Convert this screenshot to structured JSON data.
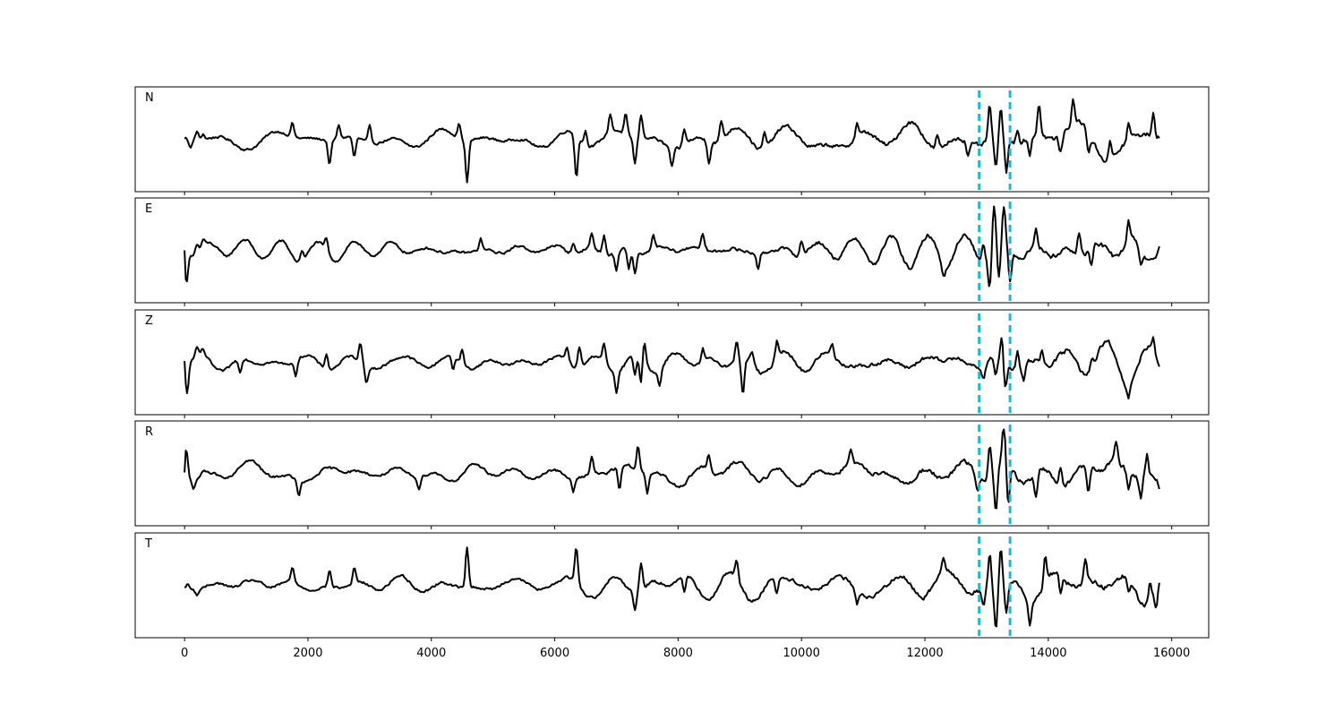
{
  "chart_data": {
    "type": "line",
    "xlim": [
      -800,
      16600
    ],
    "x_ticks": [
      0,
      2000,
      4000,
      6000,
      8000,
      10000,
      12000,
      14000,
      16000
    ],
    "x_tick_labels": [
      "0",
      "2000",
      "4000",
      "6000",
      "8000",
      "10000",
      "12000",
      "14000",
      "16000"
    ],
    "grid": false,
    "vertical_markers": [
      {
        "x": 12880,
        "color": "#17becf",
        "style": "dashed"
      },
      {
        "x": 13380,
        "color": "#17becf",
        "style": "dashed"
      }
    ],
    "x_end": 15800,
    "series": [
      {
        "name": "N",
        "ylim": [
          -1,
          1
        ],
        "events": [
          [
            0,
            0.02
          ],
          [
            100,
            -0.18
          ],
          [
            200,
            0.18
          ],
          [
            300,
            0.12
          ],
          [
            1750,
            0.3
          ],
          [
            2350,
            -0.55
          ],
          [
            2500,
            0.3
          ],
          [
            2750,
            -0.45
          ],
          [
            3000,
            0.35
          ],
          [
            4450,
            0.32
          ],
          [
            4580,
            -0.92
          ],
          [
            6350,
            -0.9
          ],
          [
            6500,
            0.3
          ],
          [
            6900,
            0.4
          ],
          [
            7150,
            0.45
          ],
          [
            7300,
            -0.55
          ],
          [
            7400,
            0.52
          ],
          [
            7900,
            -0.4
          ],
          [
            8100,
            0.35
          ],
          [
            8500,
            -0.45
          ],
          [
            8700,
            0.4
          ],
          [
            9400,
            0.35
          ],
          [
            10900,
            0.3
          ],
          [
            12200,
            0.3
          ],
          [
            12700,
            -0.3
          ],
          [
            13050,
            0.8
          ],
          [
            13150,
            -0.68
          ],
          [
            13230,
            0.7
          ],
          [
            13320,
            -0.7
          ],
          [
            13500,
            0.3
          ],
          [
            13700,
            -0.38
          ],
          [
            13850,
            0.7
          ],
          [
            14200,
            -0.38
          ],
          [
            14400,
            0.5
          ],
          [
            14650,
            -0.4
          ],
          [
            15000,
            0.4
          ],
          [
            15300,
            0.35
          ],
          [
            15700,
            0.5
          ],
          [
            15800,
            0.02
          ]
        ]
      },
      {
        "name": "E",
        "ylim": [
          -1,
          1
        ],
        "events": [
          [
            0,
            0.0
          ],
          [
            30,
            -0.65
          ],
          [
            200,
            0.18
          ],
          [
            300,
            0.15
          ],
          [
            1900,
            0.25
          ],
          [
            2300,
            0.3
          ],
          [
            4800,
            0.25
          ],
          [
            6300,
            0.25
          ],
          [
            6600,
            0.32
          ],
          [
            6800,
            0.4
          ],
          [
            7000,
            -0.4
          ],
          [
            7200,
            -0.45
          ],
          [
            7300,
            -0.5
          ],
          [
            7600,
            0.3
          ],
          [
            8400,
            0.3
          ],
          [
            9300,
            -0.35
          ],
          [
            10000,
            0.3
          ],
          [
            12300,
            -0.3
          ],
          [
            12950,
            0.4
          ],
          [
            13050,
            -0.75
          ],
          [
            13120,
            0.92
          ],
          [
            13200,
            -0.85
          ],
          [
            13280,
            0.8
          ],
          [
            13380,
            -0.7
          ],
          [
            13800,
            0.42
          ],
          [
            14500,
            0.45
          ],
          [
            14700,
            -0.4
          ],
          [
            15300,
            0.4
          ],
          [
            15500,
            -0.38
          ],
          [
            15800,
            0.08
          ]
        ]
      },
      {
        "name": "Z",
        "ylim": [
          -1,
          1
        ],
        "events": [
          [
            0,
            0.03
          ],
          [
            40,
            -0.65
          ],
          [
            200,
            0.15
          ],
          [
            300,
            0.12
          ],
          [
            900,
            -0.3
          ],
          [
            1800,
            -0.35
          ],
          [
            2300,
            0.35
          ],
          [
            2850,
            0.4
          ],
          [
            2950,
            -0.35
          ],
          [
            4350,
            -0.3
          ],
          [
            4500,
            0.3
          ],
          [
            6200,
            0.3
          ],
          [
            6400,
            0.45
          ],
          [
            6800,
            0.38
          ],
          [
            7000,
            -0.45
          ],
          [
            7300,
            -0.5
          ],
          [
            7400,
            -0.6
          ],
          [
            7450,
            0.5
          ],
          [
            7700,
            -0.38
          ],
          [
            8400,
            0.3
          ],
          [
            8950,
            0.45
          ],
          [
            9050,
            -0.8
          ],
          [
            9200,
            0.28
          ],
          [
            9600,
            0.35
          ],
          [
            10500,
            0.28
          ],
          [
            12950,
            -0.3
          ],
          [
            13150,
            -0.4
          ],
          [
            13250,
            0.55
          ],
          [
            13300,
            -0.6
          ],
          [
            13500,
            0.4
          ],
          [
            13600,
            -0.3
          ],
          [
            13900,
            0.3
          ],
          [
            14700,
            0.3
          ],
          [
            15300,
            -0.25
          ],
          [
            15700,
            0.3
          ],
          [
            15800,
            -0.12
          ]
        ]
      },
      {
        "name": "R",
        "ylim": [
          -1,
          1
        ],
        "events": [
          [
            0,
            0.02
          ],
          [
            30,
            0.6
          ],
          [
            150,
            -0.18
          ],
          [
            300,
            0.1
          ],
          [
            1850,
            -0.35
          ],
          [
            3800,
            -0.25
          ],
          [
            6300,
            -0.3
          ],
          [
            6600,
            0.4
          ],
          [
            7050,
            -0.5
          ],
          [
            7350,
            0.55
          ],
          [
            7500,
            -0.45
          ],
          [
            8500,
            0.35
          ],
          [
            10800,
            0.3
          ],
          [
            12850,
            -0.3
          ],
          [
            13050,
            0.7
          ],
          [
            13150,
            -0.95
          ],
          [
            13280,
            0.8
          ],
          [
            13350,
            -0.9
          ],
          [
            13800,
            -0.55
          ],
          [
            14200,
            0.45
          ],
          [
            14650,
            -0.5
          ],
          [
            15100,
            0.45
          ],
          [
            15300,
            -0.4
          ],
          [
            15500,
            -0.45
          ],
          [
            15600,
            0.45
          ],
          [
            15800,
            -0.12
          ]
        ]
      },
      {
        "name": "T",
        "ylim": [
          -1,
          1
        ],
        "events": [
          [
            0,
            -0.05
          ],
          [
            50,
            0.1
          ],
          [
            200,
            -0.1
          ],
          [
            1750,
            0.3
          ],
          [
            2350,
            0.35
          ],
          [
            2750,
            0.35
          ],
          [
            4580,
            0.9
          ],
          [
            6350,
            0.8
          ],
          [
            7300,
            -0.4
          ],
          [
            7400,
            0.6
          ],
          [
            8100,
            -0.35
          ],
          [
            8950,
            0.45
          ],
          [
            9600,
            -0.35
          ],
          [
            10900,
            -0.3
          ],
          [
            12300,
            0.3
          ],
          [
            12950,
            -0.4
          ],
          [
            13050,
            0.75
          ],
          [
            13150,
            -0.95
          ],
          [
            13230,
            0.8
          ],
          [
            13320,
            -0.7
          ],
          [
            13700,
            -0.55
          ],
          [
            13950,
            0.6
          ],
          [
            14200,
            -0.4
          ],
          [
            14600,
            0.45
          ],
          [
            15300,
            -0.3
          ],
          [
            15650,
            0.4
          ],
          [
            15750,
            -0.4
          ],
          [
            15800,
            0.02
          ]
        ]
      }
    ]
  }
}
